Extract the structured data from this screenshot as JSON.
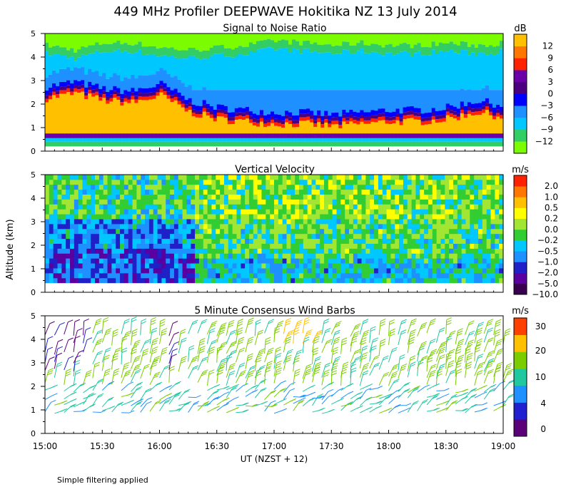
{
  "chart_data": {
    "type": "heatmap",
    "title": "449 MHz Profiler DEEPWAVE Hokitika NZ 13 July 2014",
    "ylabel": "Altitude (km)",
    "xlabel": "UT  (NZST + 12)",
    "x_ticks": [
      "15:00",
      "15:30",
      "16:00",
      "16:30",
      "17:00",
      "17:30",
      "18:00",
      "18:30",
      "19:00"
    ],
    "y_ticks": [
      "0",
      "1",
      "2",
      "3",
      "4",
      "5"
    ],
    "ylim": [
      0,
      5
    ],
    "footnote": "Simple filtering applied",
    "panels": [
      {
        "title": "Signal to Noise Ratio",
        "units": "dB",
        "colorbar_labels": [
          "12",
          "9",
          "6",
          "3",
          "0",
          "−3",
          "−6",
          "−9",
          "−12"
        ],
        "colors": [
          "#7cfc00",
          "#32cd64",
          "#00c8ff",
          "#1e90ff",
          "#0000ff",
          "#4b0082",
          "#6a00a8",
          "#ff2200",
          "#ff7700",
          "#ffc000"
        ],
        "surface_height_km": 0.4,
        "bands_km": [
          {
            "time_hours": [
              15.0,
              15.25,
              15.5,
              15.75,
              16.0,
              16.25,
              16.5,
              16.75,
              17.0,
              17.25,
              17.5,
              17.75,
              18.0,
              18.25,
              18.5,
              18.75,
              19.0
            ],
            "top_strong_echo": [
              2.4,
              2.6,
              2.3,
              2.2,
              2.5,
              1.8,
              1.5,
              1.4,
              1.3,
              1.3,
              1.2,
              1.3,
              1.4,
              1.4,
              1.5,
              1.8,
              1.6
            ],
            "top_noise_floor": [
              4.5,
              4.3,
              4.6,
              4.6,
              4.4,
              4.3,
              4.4,
              4.5,
              4.7,
              4.6,
              4.5,
              4.6,
              4.5,
              4.5,
              4.6,
              4.5,
              4.6
            ]
          }
        ]
      },
      {
        "title": "Vertical Velocity",
        "units": "m/s",
        "colorbar_labels": [
          "2.0",
          "1.0",
          "0.5",
          "0.2",
          "0.0",
          "−0.2",
          "−0.5",
          "−1.0",
          "−2.0",
          "−5.0",
          "−10.0"
        ],
        "colors": [
          "#3a0050",
          "#5a00a0",
          "#2020c8",
          "#1e90ff",
          "#00c8ff",
          "#32cd32",
          "#a0e632",
          "#ffff00",
          "#ffc000",
          "#ff7700",
          "#ff2200"
        ],
        "surface_height_km": 0.4
      },
      {
        "title": "5 Minute Consensus Wind Barbs",
        "units": "m/s",
        "colorbar_labels": [
          "30",
          "20",
          "10",
          "4",
          "0"
        ],
        "colors": [
          "#5a0078",
          "#2020d0",
          "#1e90ff",
          "#20c8a0",
          "#7ccd00",
          "#ffc000",
          "#ff4000"
        ],
        "heights_km": [
          0.9,
          1.2,
          1.5,
          1.8,
          2.1,
          2.4,
          2.7,
          3.0,
          3.4,
          3.8,
          4.2
        ]
      }
    ]
  }
}
